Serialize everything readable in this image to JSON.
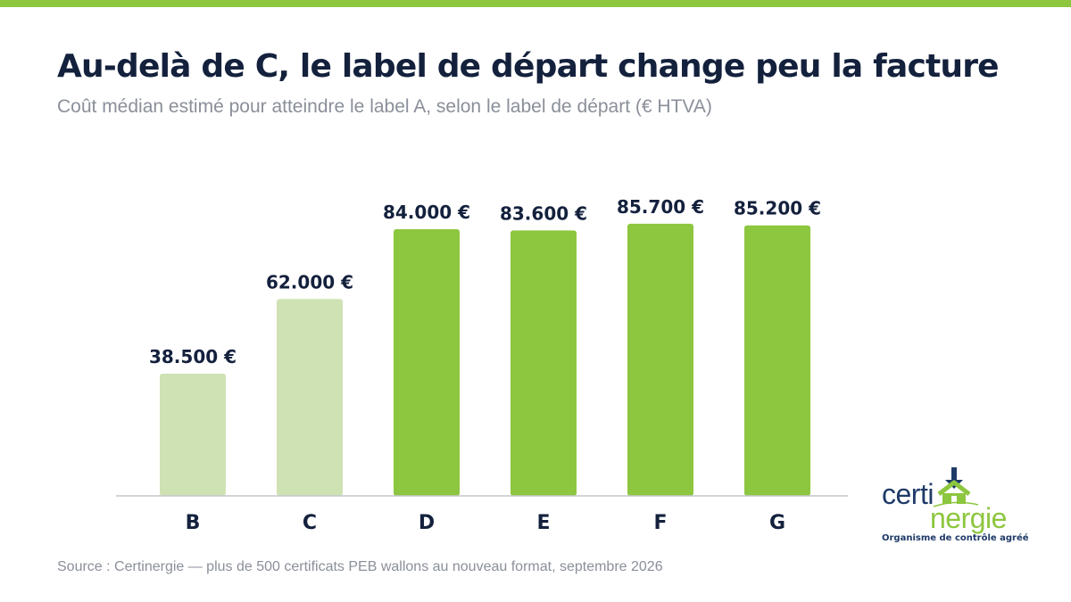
{
  "header": {
    "title": "Au-delà de C, le label de départ change peu la facture",
    "subtitle": "Coût médian estimé pour atteindre le label A, selon le label de départ (€ HTVA)"
  },
  "chart_data": {
    "type": "bar",
    "categories": [
      "B",
      "C",
      "D",
      "E",
      "F",
      "G"
    ],
    "values": [
      38500,
      62000,
      84000,
      83600,
      85700,
      85200
    ],
    "value_labels": [
      "38.500 €",
      "62.000 €",
      "84.000 €",
      "83.600 €",
      "85.700 €",
      "85.200 €"
    ],
    "title": "",
    "xlabel": "",
    "ylabel": "",
    "ylim": [
      0,
      100000
    ],
    "grid": false,
    "legend": "none",
    "colors": {
      "light": "#cfe2b4",
      "dark": "#8dc63f",
      "per_bar": [
        "light",
        "light",
        "dark",
        "dark",
        "dark",
        "dark"
      ]
    }
  },
  "footer": {
    "source": "Source : Certinergie — plus de 500 certificats PEB wallons au nouveau format, septembre 2026"
  },
  "logo": {
    "word_certi": "certi",
    "word_nergie": "nergie",
    "tagline": "Organisme de contrôle agréé",
    "icon": "house-arrow-icon"
  },
  "colors": {
    "accent": "#8dc63f",
    "text_dark": "#14213d",
    "text_muted": "#8a8f99",
    "logo_blue": "#1f3a68"
  }
}
